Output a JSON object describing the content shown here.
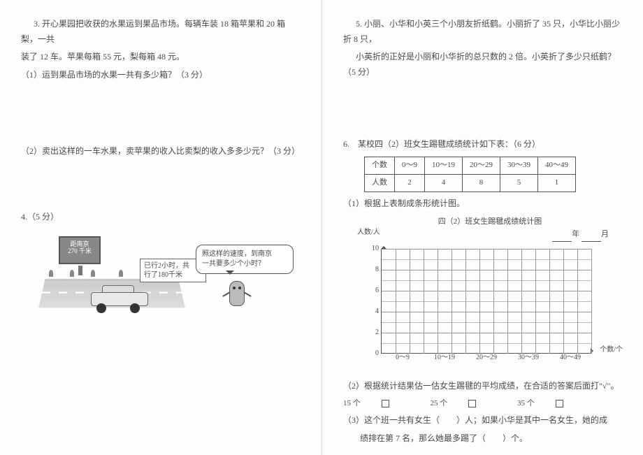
{
  "left": {
    "q3": {
      "stem": "3. 开心果园把收获的水果运到果品市场。每辆车装 18 箱苹果和 20 箱梨，一共",
      "stem2": "装了 12 车。苹果每箱 55 元，梨每箱 48 元。",
      "sub1": "（1）运到果品市场的水果一共有多少箱？（3 分）",
      "sub2": "（2）卖出这样的一车水果，卖苹果的收入比卖梨的收入多多少元？（3 分）"
    },
    "q4": {
      "head": "4.（5 分）",
      "sign_l1": "距南京",
      "sign_l2": "270 千米",
      "box_l1": "已行2小时，共",
      "box_l2": "行了180千米",
      "speech_l1": "照这样的速度，到南京",
      "speech_l2": "一共要多少个小时？"
    }
  },
  "right": {
    "q5": {
      "stem": "5. 小丽、小华和小英三个小朋友折纸鹤。小丽折了 35 只，小华比小丽少折 8 只，",
      "stem2": "小英折的正好是小丽和小华折的总只数的 2 倍。小英折了多少只纸鹤？（5 分）"
    },
    "q6": {
      "head": "6.　某校四（2）班女生踢毽成绩统计如下表：（6 分）",
      "table": {
        "row1": [
          "个数",
          "0～9",
          "10～19",
          "20～29",
          "30～39",
          "40～49"
        ],
        "row2": [
          "人数",
          "2",
          "4",
          "8",
          "5",
          "1"
        ]
      },
      "sub1": "（1）根据上表制成条形统计图。",
      "chart": {
        "title": "四（2）班女生踢毽成绩统计图",
        "y_label": "人数/人",
        "x_label": "个数/个",
        "date_y": "年",
        "date_m": "月",
        "y_ticks": [
          0,
          2,
          4,
          6,
          8,
          10
        ],
        "y_max": 10,
        "x_ticks": [
          "0～9",
          "10～19",
          "20～29",
          "30～39",
          "40～49"
        ],
        "grid_cols": 15,
        "grid_rows": 10
      },
      "sub2": "（2）根据统计结果估一估女生踢毽的平均成绩，在合适的答案后面打\"√\"。",
      "opts": [
        "15 个",
        "25 个",
        "35 个"
      ],
      "sub3": "（3）这个班一共有女生（　　）人；如果小华是其中一名女生，她的成",
      "sub3b": "绩排在第 7 名，那么她最多踢了（　　）个。"
    }
  }
}
